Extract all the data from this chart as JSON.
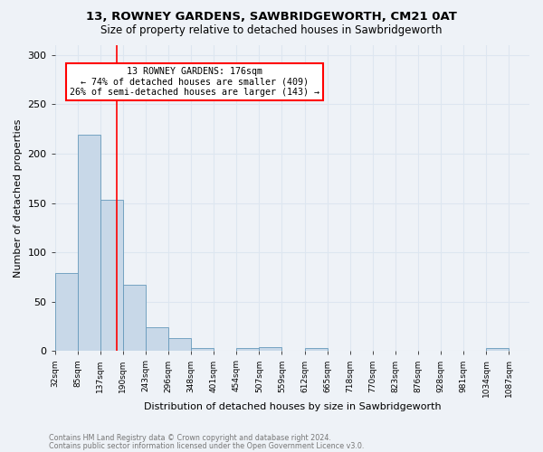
{
  "title1": "13, ROWNEY GARDENS, SAWBRIDGEWORTH, CM21 0AT",
  "title2": "Size of property relative to detached houses in Sawbridgeworth",
  "xlabel": "Distribution of detached houses by size in Sawbridgeworth",
  "ylabel": "Number of detached properties",
  "footnote1": "Contains HM Land Registry data © Crown copyright and database right 2024.",
  "footnote2": "Contains public sector information licensed under the Open Government Licence v3.0.",
  "categories": [
    "32sqm",
    "85sqm",
    "137sqm",
    "190sqm",
    "243sqm",
    "296sqm",
    "348sqm",
    "401sqm",
    "454sqm",
    "507sqm",
    "559sqm",
    "612sqm",
    "665sqm",
    "718sqm",
    "770sqm",
    "823sqm",
    "876sqm",
    "928sqm",
    "981sqm",
    "1034sqm",
    "1087sqm"
  ],
  "values": [
    79,
    219,
    153,
    67,
    24,
    13,
    3,
    0,
    3,
    4,
    0,
    3,
    0,
    0,
    0,
    0,
    0,
    0,
    0,
    3,
    0
  ],
  "bar_color": "#c8d8e8",
  "bar_edge_color": "#6699bb",
  "annotation_line_color": "red",
  "annotation_text1": "13 ROWNEY GARDENS: 176sqm",
  "annotation_text2": "← 74% of detached houses are smaller (409)",
  "annotation_text3": "26% of semi-detached houses are larger (143) →",
  "annotation_box_color": "white",
  "annotation_box_edge_color": "red",
  "x_min": 32,
  "x_max": 1140,
  "bin_width": 53,
  "y_min": 0,
  "y_max": 310,
  "grid_color": "#dde6f0",
  "background_color": "#eef2f7"
}
